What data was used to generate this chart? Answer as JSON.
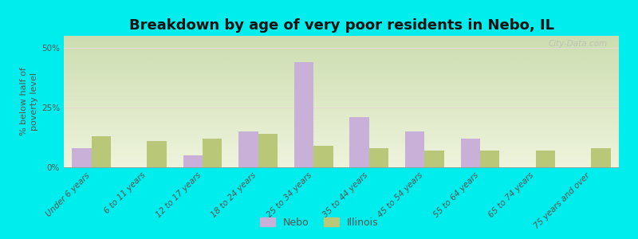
{
  "categories": [
    "Under 6 years",
    "6 to 11 years",
    "12 to 17 years",
    "18 to 24 years",
    "25 to 34 years",
    "35 to 44 years",
    "45 to 54 years",
    "55 to 64 years",
    "65 to 74 years",
    "75 years and over"
  ],
  "nebo_values": [
    8,
    0,
    5,
    15,
    44,
    21,
    15,
    12,
    0,
    0
  ],
  "illinois_values": [
    13,
    11,
    12,
    14,
    9,
    8,
    7,
    7,
    7,
    8
  ],
  "nebo_color": "#c9b0d8",
  "illinois_color": "#b8c878",
  "background_color": "#00eded",
  "grad_top": "#ccddb0",
  "grad_bottom": "#eef4dc",
  "title": "Breakdown by age of very poor residents in Nebo, IL",
  "ylabel": "% below half of\npoverty level",
  "ylim": [
    0,
    55
  ],
  "yticks": [
    0,
    25,
    50
  ],
  "ytick_labels": [
    "0%",
    "25%",
    "50%"
  ],
  "bar_width": 0.35,
  "title_fontsize": 13,
  "axis_label_fontsize": 8,
  "tick_fontsize": 7.5,
  "legend_labels": [
    "Nebo",
    "Illinois"
  ],
  "watermark": "City-Data.com"
}
